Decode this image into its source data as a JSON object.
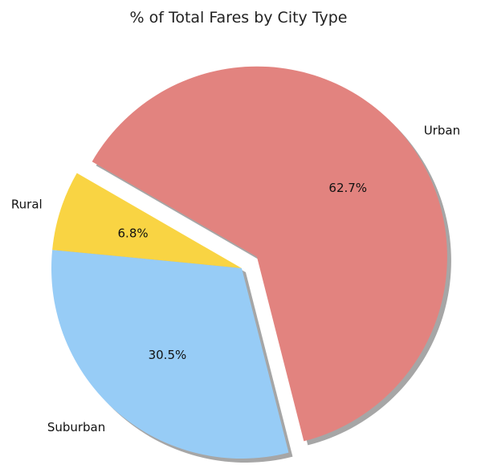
{
  "chart_data": {
    "type": "pie",
    "title": "% of Total Fares by City Type",
    "slices": [
      {
        "label": "Rural",
        "value": 6.8,
        "pct_label": "6.8%",
        "color": "#F9D443",
        "explode": 0
      },
      {
        "label": "Suburban",
        "value": 30.5,
        "pct_label": "30.5%",
        "color": "#97CCF6",
        "explode": 0
      },
      {
        "label": "Urban",
        "value": 62.7,
        "pct_label": "62.7%",
        "color": "#E2837F",
        "explode": 0.1
      }
    ],
    "start_angle": 150,
    "shadow": true,
    "legend": "none"
  }
}
